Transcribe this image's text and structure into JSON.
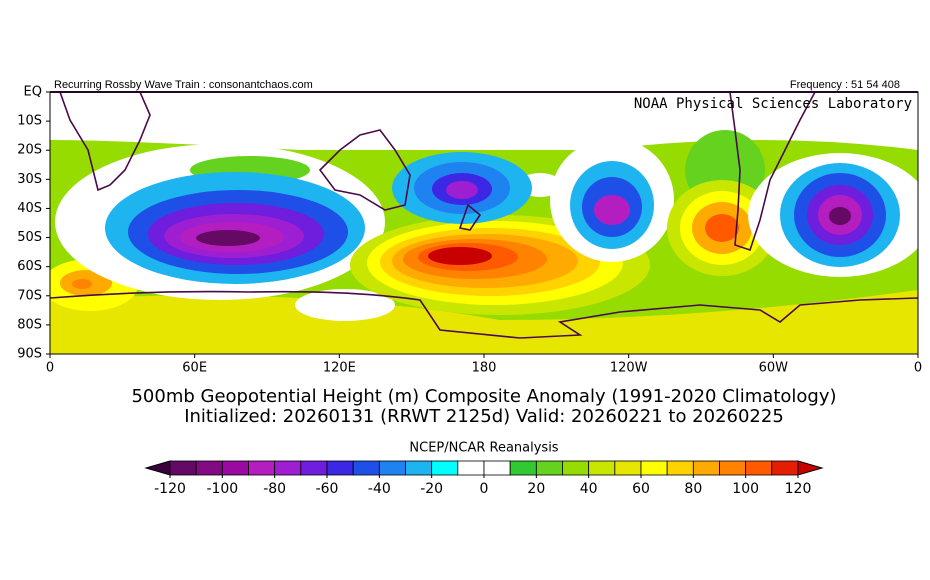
{
  "header": {
    "left": "Recurring Rossby Wave Train : consonantchaos.com",
    "right": "Frequency : 51 54 408",
    "lab": "NOAA Physical Sciences Laboratory"
  },
  "map": {
    "lat_labels": [
      "EQ",
      "10S",
      "20S",
      "30S",
      "40S",
      "50S",
      "60S",
      "70S",
      "80S",
      "90S"
    ],
    "lon_labels": [
      "0",
      "60E",
      "120E",
      "180",
      "120W",
      "60W",
      "0"
    ]
  },
  "title": [
    "500mb Geopotential Height (m) Composite Anomaly (1991-2020 Climatology)",
    "Initialized: 20260131 (RRWT 2125d) Valid: 20260221 to 20260225"
  ],
  "colorbar": {
    "label": "NCEP/NCAR Reanalysis",
    "ticks": [
      -120,
      -100,
      -80,
      -60,
      -40,
      -20,
      0,
      20,
      40,
      60,
      80,
      100,
      120
    ],
    "under_color": "#3c003c",
    "over_color": "#c80000",
    "colors": [
      "#640a64",
      "#820a82",
      "#9a0aa0",
      "#b41ec0",
      "#9e1ed2",
      "#6e1edc",
      "#3c28e4",
      "#1e50e8",
      "#1e82f0",
      "#1eb4f0",
      "#00ffff",
      "#ffffff",
      "#ffffff",
      "#32c832",
      "#64d21e",
      "#96dc00",
      "#c8e600",
      "#e6e600",
      "#ffff00",
      "#ffd200",
      "#ffaa00",
      "#ff8200",
      "#ff5a00",
      "#e61e00"
    ]
  }
}
